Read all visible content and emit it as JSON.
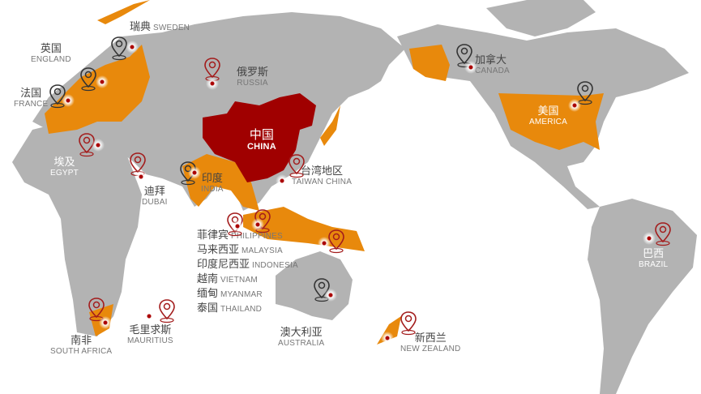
{
  "colors": {
    "land": "#b3b3b3",
    "partner": "#e8890c",
    "china": "#a00000",
    "pin_red": "#a31c1c",
    "pin_dark": "#333333"
  },
  "labels": {
    "sweden": {
      "cn": "瑞典",
      "en": "SWEDEN"
    },
    "england": {
      "cn": "英国",
      "en": "ENGLAND"
    },
    "france": {
      "cn": "法国",
      "en": "FRANCE"
    },
    "egypt": {
      "cn": "埃及",
      "en": "EGYPT"
    },
    "dubai": {
      "cn": "迪拜",
      "en": "DUBAI"
    },
    "russia": {
      "cn": "俄罗斯",
      "en": "RUSSIA"
    },
    "china": {
      "cn": "中国",
      "en": "CHINA"
    },
    "india": {
      "cn": "印度",
      "en": "INDIA"
    },
    "taiwan": {
      "cn": "台湾地区",
      "en": "TAIWAN CHINA"
    },
    "philippines": {
      "cn": "菲律宾",
      "en": "PHILIPPINES"
    },
    "malaysia": {
      "cn": "马来西亚",
      "en": "MALAYSIA"
    },
    "indonesia": {
      "cn": "印度尼西亚",
      "en": "INDONESIA"
    },
    "vietnam": {
      "cn": "越南",
      "en": "VIETNAM"
    },
    "myanmar": {
      "cn": "缅甸",
      "en": "MYANMAR"
    },
    "thailand": {
      "cn": "泰国",
      "en": "THAILAND"
    },
    "south_africa": {
      "cn": "南非",
      "en": "SOUTH AFRICA"
    },
    "mauritius": {
      "cn": "毛里求斯",
      "en": "MAURITIUS"
    },
    "australia": {
      "cn": "澳大利亚",
      "en": "AUSTRALIA"
    },
    "new_zealand": {
      "cn": "新西兰",
      "en": "NEW ZEALAND"
    },
    "canada": {
      "cn": "加拿大",
      "en": "CANADA"
    },
    "america": {
      "cn": "美国",
      "en": "AMERICA"
    },
    "brazil": {
      "cn": "巴西",
      "en": "BRAZIL"
    }
  },
  "pins": [
    {
      "id": "sweden",
      "style": "dark"
    },
    {
      "id": "england",
      "style": "dark"
    },
    {
      "id": "france",
      "style": "dark"
    },
    {
      "id": "egypt",
      "style": "red"
    },
    {
      "id": "dubai",
      "style": "red"
    },
    {
      "id": "russia",
      "style": "red"
    },
    {
      "id": "india",
      "style": "dark"
    },
    {
      "id": "taiwan",
      "style": "red"
    },
    {
      "id": "philippines",
      "style": "red"
    },
    {
      "id": "malaysia",
      "style": "red"
    },
    {
      "id": "indonesia",
      "style": "red"
    },
    {
      "id": "australia",
      "style": "dark"
    },
    {
      "id": "south_africa",
      "style": "red"
    },
    {
      "id": "mauritius",
      "style": "red"
    },
    {
      "id": "new_zealand",
      "style": "red"
    },
    {
      "id": "canada",
      "style": "dark"
    },
    {
      "id": "america",
      "style": "dark"
    },
    {
      "id": "brazil",
      "style": "red"
    }
  ]
}
